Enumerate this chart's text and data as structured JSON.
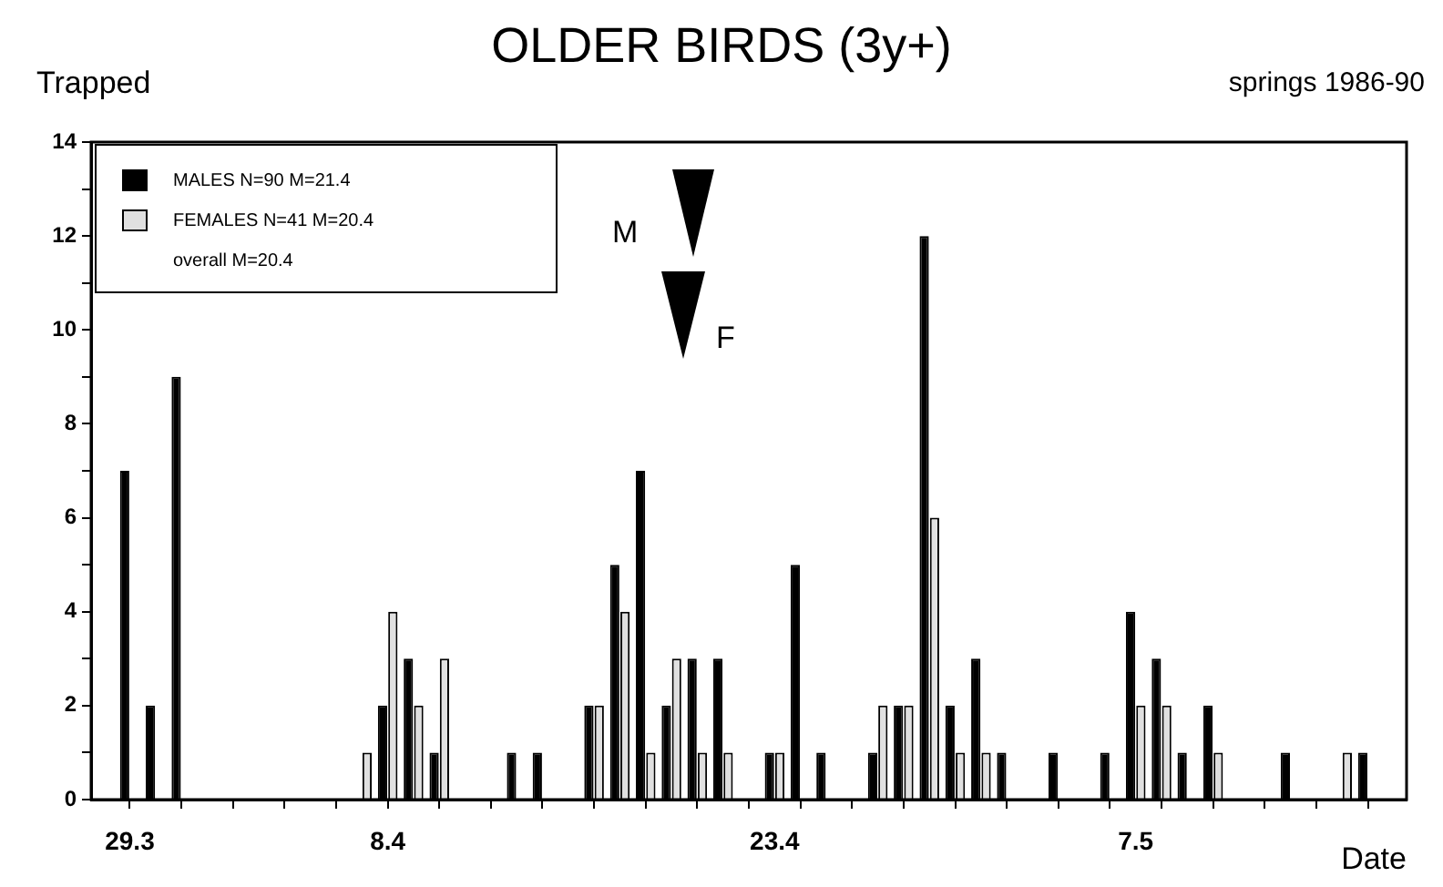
{
  "chart_data": {
    "type": "bar",
    "title": "OLDER BIRDS (3y+)",
    "subtitle": "springs 1986-90",
    "ylabel": "Trapped",
    "xlabel": "Date",
    "categories": [
      null,
      "29.3",
      null,
      null,
      null,
      null,
      null,
      null,
      null,
      null,
      null,
      "8.4",
      null,
      null,
      null,
      null,
      null,
      null,
      null,
      null,
      null,
      null,
      null,
      null,
      null,
      null,
      "23.4",
      null,
      null,
      null,
      null,
      null,
      null,
      null,
      null,
      null,
      null,
      null,
      null,
      null,
      "7.5",
      null,
      null,
      null,
      null,
      null,
      null,
      null,
      null,
      null,
      null
    ],
    "series": [
      {
        "name": "MALES  N=90  M=21.4",
        "color": "#000000",
        "values": [
          0,
          7,
          2,
          9,
          0,
          0,
          0,
          0,
          0,
          0,
          0,
          2,
          3,
          1,
          0,
          0,
          1,
          1,
          0,
          2,
          5,
          7,
          2,
          3,
          3,
          0,
          1,
          5,
          1,
          0,
          1,
          2,
          12,
          2,
          3,
          1,
          0,
          1,
          0,
          1,
          4,
          3,
          1,
          2,
          0,
          0,
          1,
          0,
          0,
          1,
          0
        ]
      },
      {
        "name": "FEMALES N=41  M=20.4",
        "color": "#e0e0e0",
        "values": [
          0,
          0,
          0,
          0,
          0,
          0,
          0,
          0,
          0,
          0,
          1,
          4,
          2,
          3,
          0,
          0,
          0,
          0,
          0,
          2,
          4,
          1,
          3,
          1,
          1,
          0,
          1,
          0,
          0,
          0,
          2,
          2,
          6,
          1,
          1,
          0,
          0,
          0,
          0,
          0,
          2,
          2,
          0,
          1,
          0,
          0,
          0,
          0,
          1,
          0,
          0
        ]
      }
    ],
    "ylim": [
      0,
      14
    ],
    "yticks": [
      0,
      {
        "value": 1,
        "label": null
      },
      2,
      {
        "value": 3,
        "label": null
      },
      4,
      {
        "value": 5,
        "label": null
      },
      6,
      {
        "value": 7,
        "label": null
      },
      8,
      {
        "value": 9,
        "label": null
      },
      10,
      {
        "value": 11,
        "label": null
      },
      12,
      {
        "value": 13,
        "label": null
      },
      14
    ],
    "legend": "top left",
    "grid": false,
    "annotations": [
      "overall M=20.4",
      "M",
      "F"
    ]
  }
}
